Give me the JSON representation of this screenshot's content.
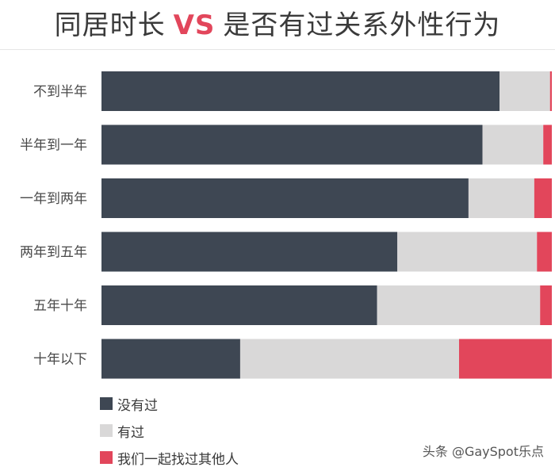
{
  "title": {
    "part1": "同居时长",
    "vs": "VS",
    "part2": "是否有过关系外性行为"
  },
  "colors": {
    "dark": "#3e4753",
    "light": "#d9d8d8",
    "red": "#e2465b"
  },
  "chart_data": {
    "type": "bar",
    "orientation": "horizontal",
    "stacked": true,
    "normalized": true,
    "categories": [
      "不到半年",
      "半年到一年",
      "一年到两年",
      "两年到五年",
      "五年十年",
      "十年以下"
    ],
    "series": [
      {
        "name": "没有过",
        "color": "#3e4753",
        "values": [
          88.4,
          84.6,
          81.5,
          65.7,
          61.2,
          30.8
        ]
      },
      {
        "name": "有过",
        "color": "#d9d8d8",
        "values": [
          11.2,
          13.5,
          14.6,
          31.0,
          36.2,
          48.6
        ]
      },
      {
        "name": "我们一起找过其他人",
        "color": "#e2465b",
        "values": [
          0.4,
          1.9,
          3.9,
          3.3,
          2.6,
          20.6
        ]
      }
    ],
    "legend_position": "bottom-left",
    "grid": false
  },
  "watermark": "头条 @GaySpot乐点"
}
